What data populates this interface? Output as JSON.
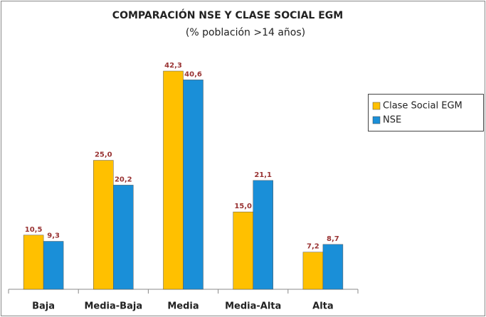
{
  "chart_data": {
    "type": "bar",
    "title": "COMPARACIÓN NSE  Y CLASE SOCIAL EGM",
    "subtitle": "(% población >14 años)",
    "categories": [
      "Baja",
      "Media-Baja",
      "Media",
      "Media-Alta",
      "Alta"
    ],
    "series": [
      {
        "name": "Clase Social EGM",
        "color": "#ffc000",
        "values": [
          10.5,
          25.0,
          42.3,
          15.0,
          7.2
        ],
        "value_labels": [
          "10,5",
          "25,0",
          "42,3",
          "15,0",
          "7,2"
        ]
      },
      {
        "name": "NSE",
        "color": "#1a8fd8",
        "values": [
          9.3,
          20.2,
          40.6,
          21.1,
          8.7
        ],
        "value_labels": [
          "9,3",
          "20,2",
          "40,6",
          "21,1",
          "8,7"
        ]
      }
    ],
    "legend": "right"
  }
}
